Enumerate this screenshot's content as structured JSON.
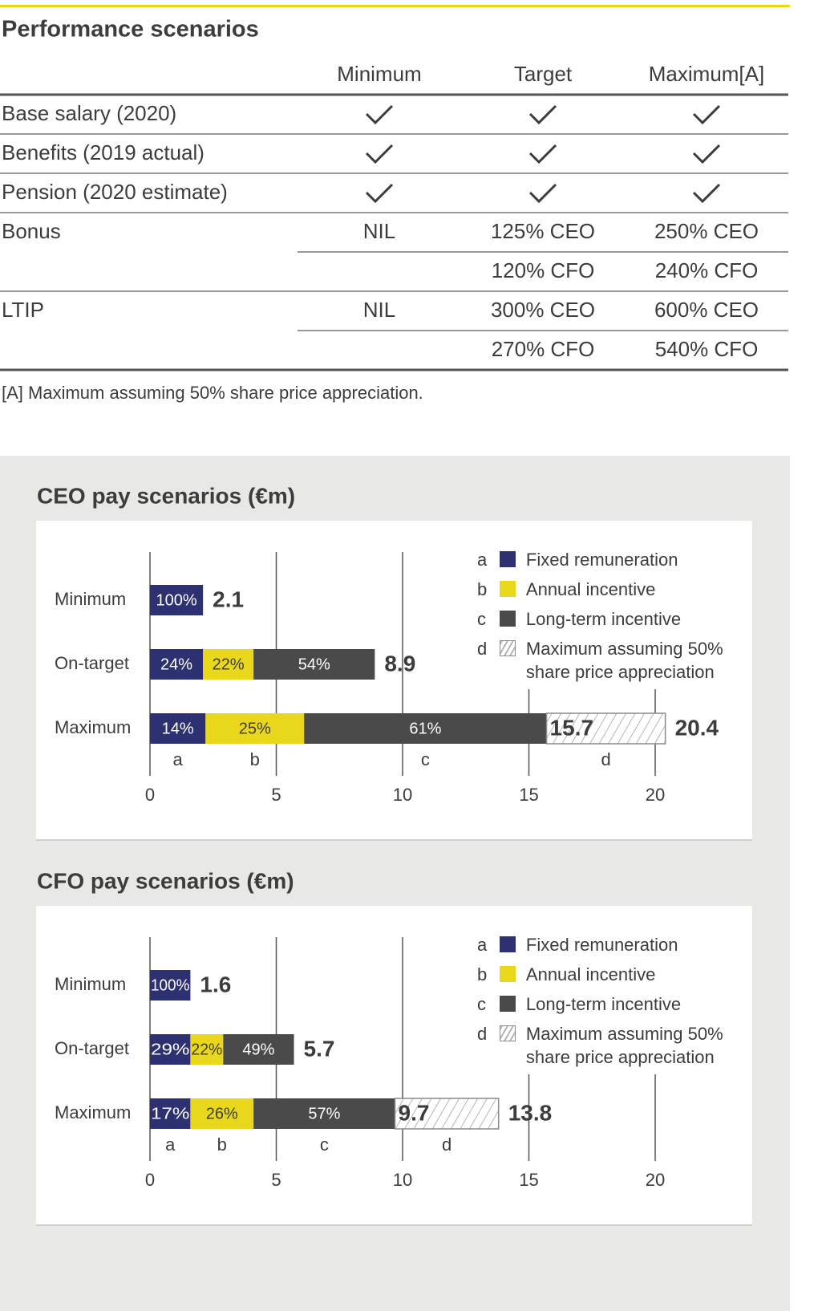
{
  "table": {
    "title": "Performance scenarios",
    "columns": [
      "Minimum",
      "Target",
      "Maximum[A]"
    ],
    "check_rows": [
      "Base salary (2020)",
      "Benefits (2019 actual)",
      "Pension (2020 estimate)"
    ],
    "level_rows": [
      {
        "label": "Bonus",
        "minimum": "NIL",
        "target": [
          "125% CEO",
          "120% CFO"
        ],
        "maximum": [
          "250% CEO",
          "240% CFO"
        ]
      },
      {
        "label": "LTIP",
        "minimum": "NIL",
        "target": [
          "300% CEO",
          "270% CFO"
        ],
        "maximum": [
          "600% CEO",
          "540% CFO"
        ]
      }
    ],
    "footnote": "[A] Maximum assuming 50% share price appreciation."
  },
  "chart_data": [
    {
      "type": "bar",
      "orientation": "horizontal",
      "stacked": true,
      "title": "CEO pay scenarios (€m)",
      "categories": [
        "Minimum",
        "On-target",
        "Maximum"
      ],
      "series": [
        {
          "name": "Fixed remuneration",
          "letter": "a",
          "color": "#2e3171",
          "label_color": "#ffffff",
          "values": [
            2.1,
            2.1,
            2.2
          ],
          "share_labels": [
            "100%",
            "24%",
            "14%"
          ]
        },
        {
          "name": "Annual incentive",
          "letter": "b",
          "color": "#e9d71c",
          "label_color": "#3c3c3c",
          "values": [
            null,
            2.0,
            3.9
          ],
          "share_labels": [
            null,
            "22%",
            "25%"
          ]
        },
        {
          "name": "Long-term incentive",
          "letter": "c",
          "color": "#4a4a4a",
          "label_color": "#ffffff",
          "values": [
            null,
            4.8,
            9.6
          ],
          "share_labels": [
            null,
            "54%",
            "61%"
          ]
        },
        {
          "name": "Maximum assuming 50% share price appreciation",
          "letter": "d",
          "color": "#b5b5b5",
          "pattern": "hatch",
          "values": [
            null,
            null,
            4.7
          ]
        }
      ],
      "subtotals": [
        null,
        null,
        15.7
      ],
      "totals": [
        2.1,
        8.9,
        20.4
      ],
      "xlim": [
        0,
        20
      ],
      "xticks": [
        0,
        5,
        10,
        15,
        20
      ],
      "grid": true
    },
    {
      "type": "bar",
      "orientation": "horizontal",
      "stacked": true,
      "title": "CFO pay scenarios (€m)",
      "categories": [
        "Minimum",
        "On-target",
        "Maximum"
      ],
      "series": [
        {
          "name": "Fixed remuneration",
          "letter": "a",
          "color": "#2e3171",
          "label_color": "#ffffff",
          "values": [
            1.6,
            1.6,
            1.6
          ],
          "share_labels": [
            "100%",
            "29%",
            "17%"
          ]
        },
        {
          "name": "Annual incentive",
          "letter": "b",
          "color": "#e9d71c",
          "label_color": "#3c3c3c",
          "values": [
            null,
            1.3,
            2.5
          ],
          "share_labels": [
            null,
            "22%",
            "26%"
          ]
        },
        {
          "name": "Long-term incentive",
          "letter": "c",
          "color": "#4a4a4a",
          "label_color": "#ffffff",
          "values": [
            null,
            2.8,
            5.6
          ],
          "share_labels": [
            null,
            "49%",
            "57%"
          ]
        },
        {
          "name": "Maximum assuming 50% share price appreciation",
          "letter": "d",
          "color": "#b5b5b5",
          "pattern": "hatch",
          "values": [
            null,
            null,
            4.1
          ]
        }
      ],
      "subtotals": [
        null,
        null,
        9.7
      ],
      "totals": [
        1.6,
        5.7,
        13.8
      ],
      "xlim": [
        0,
        20
      ],
      "xticks": [
        0,
        5,
        10,
        15,
        20
      ],
      "grid": true
    }
  ]
}
